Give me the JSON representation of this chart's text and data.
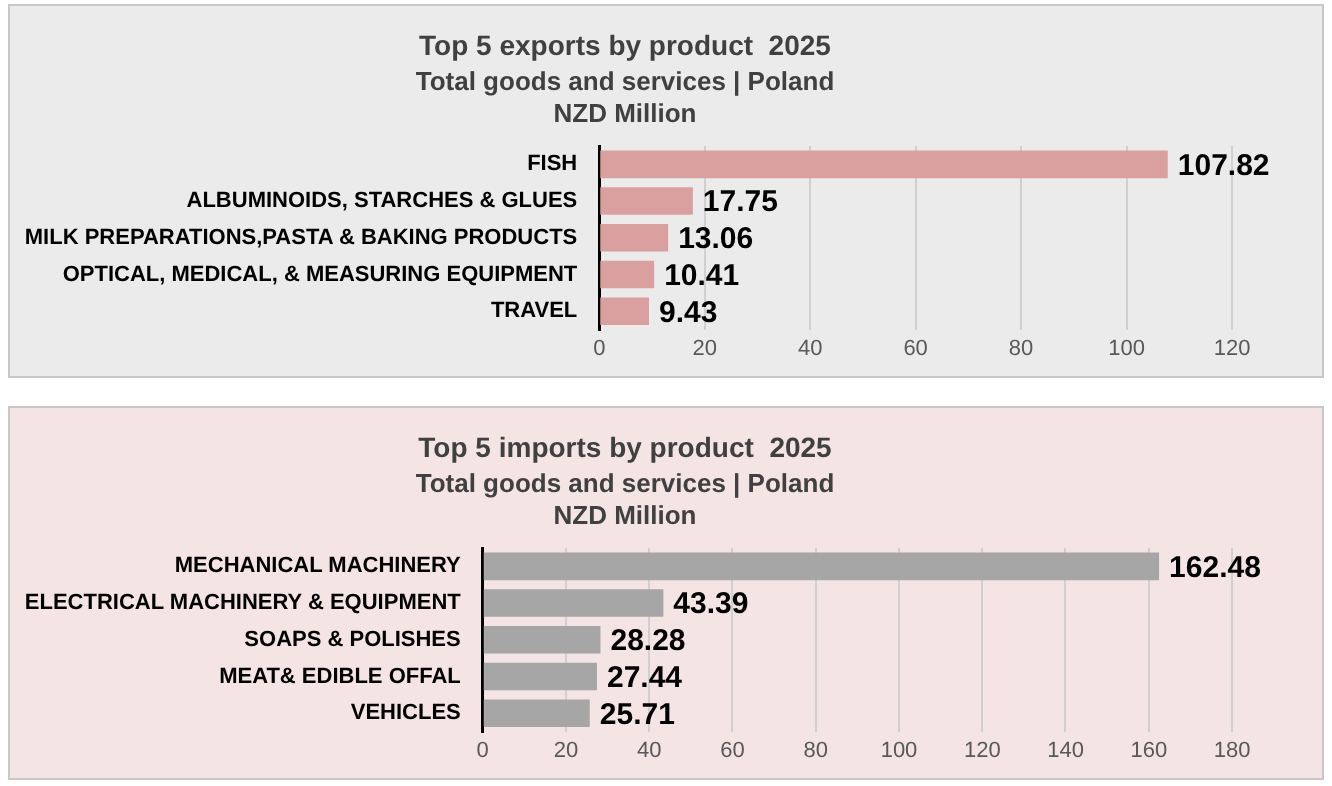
{
  "chart_data": [
    {
      "type": "bar",
      "orientation": "horizontal",
      "title": "Top 5 exports by product  2025",
      "subtitle": "Total goods and services | Poland",
      "annotations": [
        "NZD Million"
      ],
      "categories": [
        "FISH",
        "ALBUMINOIDS, STARCHES & GLUES",
        "MILK PREPARATIONS,PASTA & BAKING PRODUCTS",
        "OPTICAL, MEDICAL, & MEASURING EQUIPMENT",
        "TRAVEL"
      ],
      "series": [
        {
          "color": "#daa0a0",
          "values": [
            107.82,
            17.75,
            13.06,
            10.41,
            9.43
          ]
        }
      ],
      "xlim": [
        0,
        120
      ],
      "xticks": [
        0,
        20,
        40,
        60,
        80,
        100,
        120
      ],
      "grid": "x",
      "legend": false,
      "data_labels": true
    },
    {
      "type": "bar",
      "orientation": "horizontal",
      "title": "Top 5 imports by product  2025",
      "subtitle": "Total goods and services | Poland",
      "annotations": [
        "NZD Million"
      ],
      "categories": [
        "MECHANICAL MACHINERY",
        "ELECTRICAL MACHINERY & EQUIPMENT",
        "SOAPS & POLISHES",
        "MEAT& EDIBLE OFFAL",
        "VEHICLES"
      ],
      "series": [
        {
          "color": "#a6a6a6",
          "values": [
            162.48,
            43.39,
            28.28,
            27.44,
            25.71
          ]
        }
      ],
      "xlim": [
        0,
        180
      ],
      "xticks": [
        0,
        20,
        40,
        60,
        80,
        100,
        120,
        140,
        160,
        180
      ],
      "grid": "x",
      "legend": false,
      "data_labels": true
    }
  ]
}
